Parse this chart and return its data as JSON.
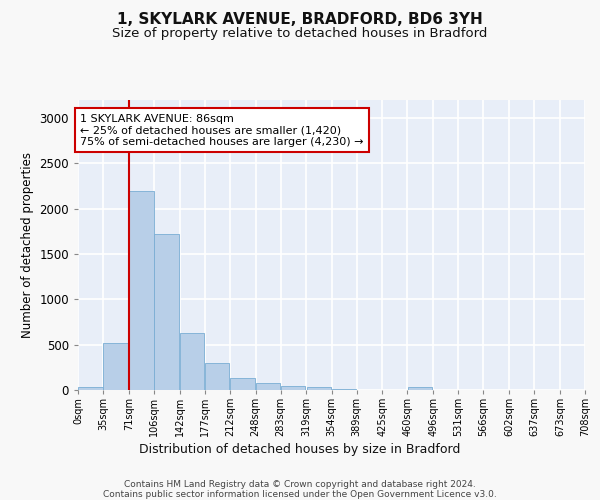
{
  "title_line1": "1, SKYLARK AVENUE, BRADFORD, BD6 3YH",
  "title_line2": "Size of property relative to detached houses in Bradford",
  "xlabel": "Distribution of detached houses by size in Bradford",
  "ylabel": "Number of detached properties",
  "bar_color": "#b8cfe8",
  "bar_edge_color": "#7aadd4",
  "background_color": "#e8eef8",
  "grid_color": "#ffffff",
  "bin_labels": [
    "0sqm",
    "35sqm",
    "71sqm",
    "106sqm",
    "142sqm",
    "177sqm",
    "212sqm",
    "248sqm",
    "283sqm",
    "319sqm",
    "354sqm",
    "389sqm",
    "425sqm",
    "460sqm",
    "496sqm",
    "531sqm",
    "566sqm",
    "602sqm",
    "637sqm",
    "673sqm",
    "708sqm"
  ],
  "bar_values": [
    30,
    520,
    2200,
    1720,
    630,
    295,
    130,
    75,
    45,
    35,
    10,
    5,
    5,
    30,
    5,
    5,
    5,
    5,
    5,
    5
  ],
  "ylim": [
    0,
    3200
  ],
  "yticks": [
    0,
    500,
    1000,
    1500,
    2000,
    2500,
    3000
  ],
  "annotation_text": "1 SKYLARK AVENUE: 86sqm\n← 25% of detached houses are smaller (1,420)\n75% of semi-detached houses are larger (4,230) →",
  "vline_x_index": 2,
  "bin_edges": [
    0,
    35,
    71,
    106,
    142,
    177,
    212,
    248,
    283,
    319,
    354,
    389,
    425,
    460,
    496,
    531,
    566,
    602,
    637,
    673,
    708
  ],
  "annotation_box_color": "#ffffff",
  "annotation_box_edge_color": "#cc0000",
  "vline_color": "#cc0000",
  "footer_text": "Contains HM Land Registry data © Crown copyright and database right 2024.\nContains public sector information licensed under the Open Government Licence v3.0.",
  "fig_bg_color": "#f8f8f8"
}
